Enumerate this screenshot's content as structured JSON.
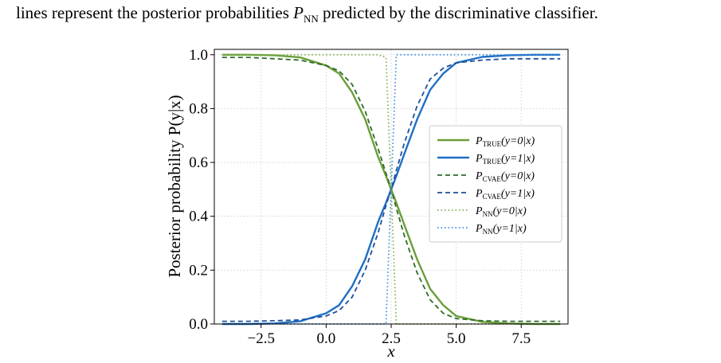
{
  "caption": {
    "before": "lines represent the posterior probabilities ",
    "symbol": "P",
    "subscript": "NN",
    "after": " predicted by the discriminative classifier."
  },
  "chart_data": {
    "type": "line",
    "xlabel": "x",
    "ylabel": "Posterior probability P(y|x)",
    "xlim": [
      -4.3,
      9.3
    ],
    "ylim": [
      0.0,
      1.02
    ],
    "xticks": [
      -2.5,
      0.0,
      2.5,
      5.0,
      7.5
    ],
    "xtick_labels": [
      "−2.5",
      "0.0",
      "2.5",
      "5.0",
      "7.5"
    ],
    "yticks": [
      0.0,
      0.2,
      0.4,
      0.6,
      0.8,
      1.0
    ],
    "ytick_labels": [
      "0.0",
      "0.2",
      "0.4",
      "0.6",
      "0.8",
      "1.0"
    ],
    "grid": true,
    "legend_position": "center-right",
    "x": [
      -4.0,
      -3.0,
      -2.0,
      -1.0,
      0.0,
      0.5,
      1.0,
      1.5,
      2.0,
      2.3,
      2.5,
      2.7,
      3.0,
      3.5,
      4.0,
      4.5,
      5.0,
      6.0,
      7.0,
      8.0,
      9.0
    ],
    "series": [
      {
        "name": "P_TRUE(y=0|x)",
        "name_base": "P",
        "name_sub": "TRUE",
        "name_rest": "(y=0|x)",
        "color": "#6b9e3a",
        "dash": "solid",
        "values": [
          1.0,
          1.0,
          0.998,
          0.99,
          0.96,
          0.93,
          0.86,
          0.76,
          0.62,
          0.55,
          0.5,
          0.45,
          0.37,
          0.24,
          0.13,
          0.07,
          0.03,
          0.008,
          0.002,
          0.0,
          0.0
        ]
      },
      {
        "name": "P_TRUE(y=1|x)",
        "name_base": "P",
        "name_sub": "TRUE",
        "name_rest": "(y=1|x)",
        "color": "#1f6fc5",
        "dash": "solid",
        "values": [
          0.0,
          0.0,
          0.002,
          0.01,
          0.04,
          0.07,
          0.14,
          0.24,
          0.38,
          0.45,
          0.5,
          0.55,
          0.63,
          0.76,
          0.87,
          0.93,
          0.97,
          0.992,
          0.998,
          1.0,
          1.0
        ]
      },
      {
        "name": "P_CVAE(y=0|x)",
        "name_base": "P",
        "name_sub": "CVAE",
        "name_rest": "(y=0|x)",
        "color": "#2f6b2a",
        "dash": "6,4",
        "values": [
          0.99,
          0.99,
          0.985,
          0.98,
          0.96,
          0.94,
          0.89,
          0.79,
          0.65,
          0.56,
          0.5,
          0.43,
          0.33,
          0.19,
          0.09,
          0.04,
          0.02,
          0.012,
          0.01,
          0.01,
          0.01
        ]
      },
      {
        "name": "P_CVAE(y=1|x)",
        "name_base": "P",
        "name_sub": "CVAE",
        "name_rest": "(y=1|x)",
        "color": "#1f4f9a",
        "dash": "6,4",
        "values": [
          0.01,
          0.01,
          0.012,
          0.015,
          0.03,
          0.05,
          0.1,
          0.2,
          0.34,
          0.44,
          0.5,
          0.57,
          0.67,
          0.81,
          0.91,
          0.95,
          0.97,
          0.98,
          0.985,
          0.985,
          0.985
        ]
      },
      {
        "name": "P_NN(y=0|x)",
        "name_base": "P",
        "name_sub": "NN",
        "name_rest": "(y=0|x)",
        "color": "#7fb04a",
        "dash": "1.5,3",
        "values": [
          1.0,
          1.0,
          1.0,
          1.0,
          1.0,
          1.0,
          1.0,
          1.0,
          1.0,
          0.99,
          0.5,
          0.0,
          0.0,
          0.0,
          0.0,
          0.0,
          0.0,
          0.0,
          0.0,
          0.0,
          0.0
        ]
      },
      {
        "name": "P_NN(y=1|x)",
        "name_base": "P",
        "name_sub": "NN",
        "name_rest": "(y=1|x)",
        "color": "#3a8fe0",
        "dash": "1.5,3",
        "values": [
          0.0,
          0.0,
          0.0,
          0.0,
          0.0,
          0.0,
          0.0,
          0.0,
          0.0,
          0.0,
          0.5,
          1.0,
          1.0,
          1.0,
          1.0,
          1.0,
          1.0,
          1.0,
          1.0,
          1.0,
          1.0
        ]
      }
    ]
  }
}
